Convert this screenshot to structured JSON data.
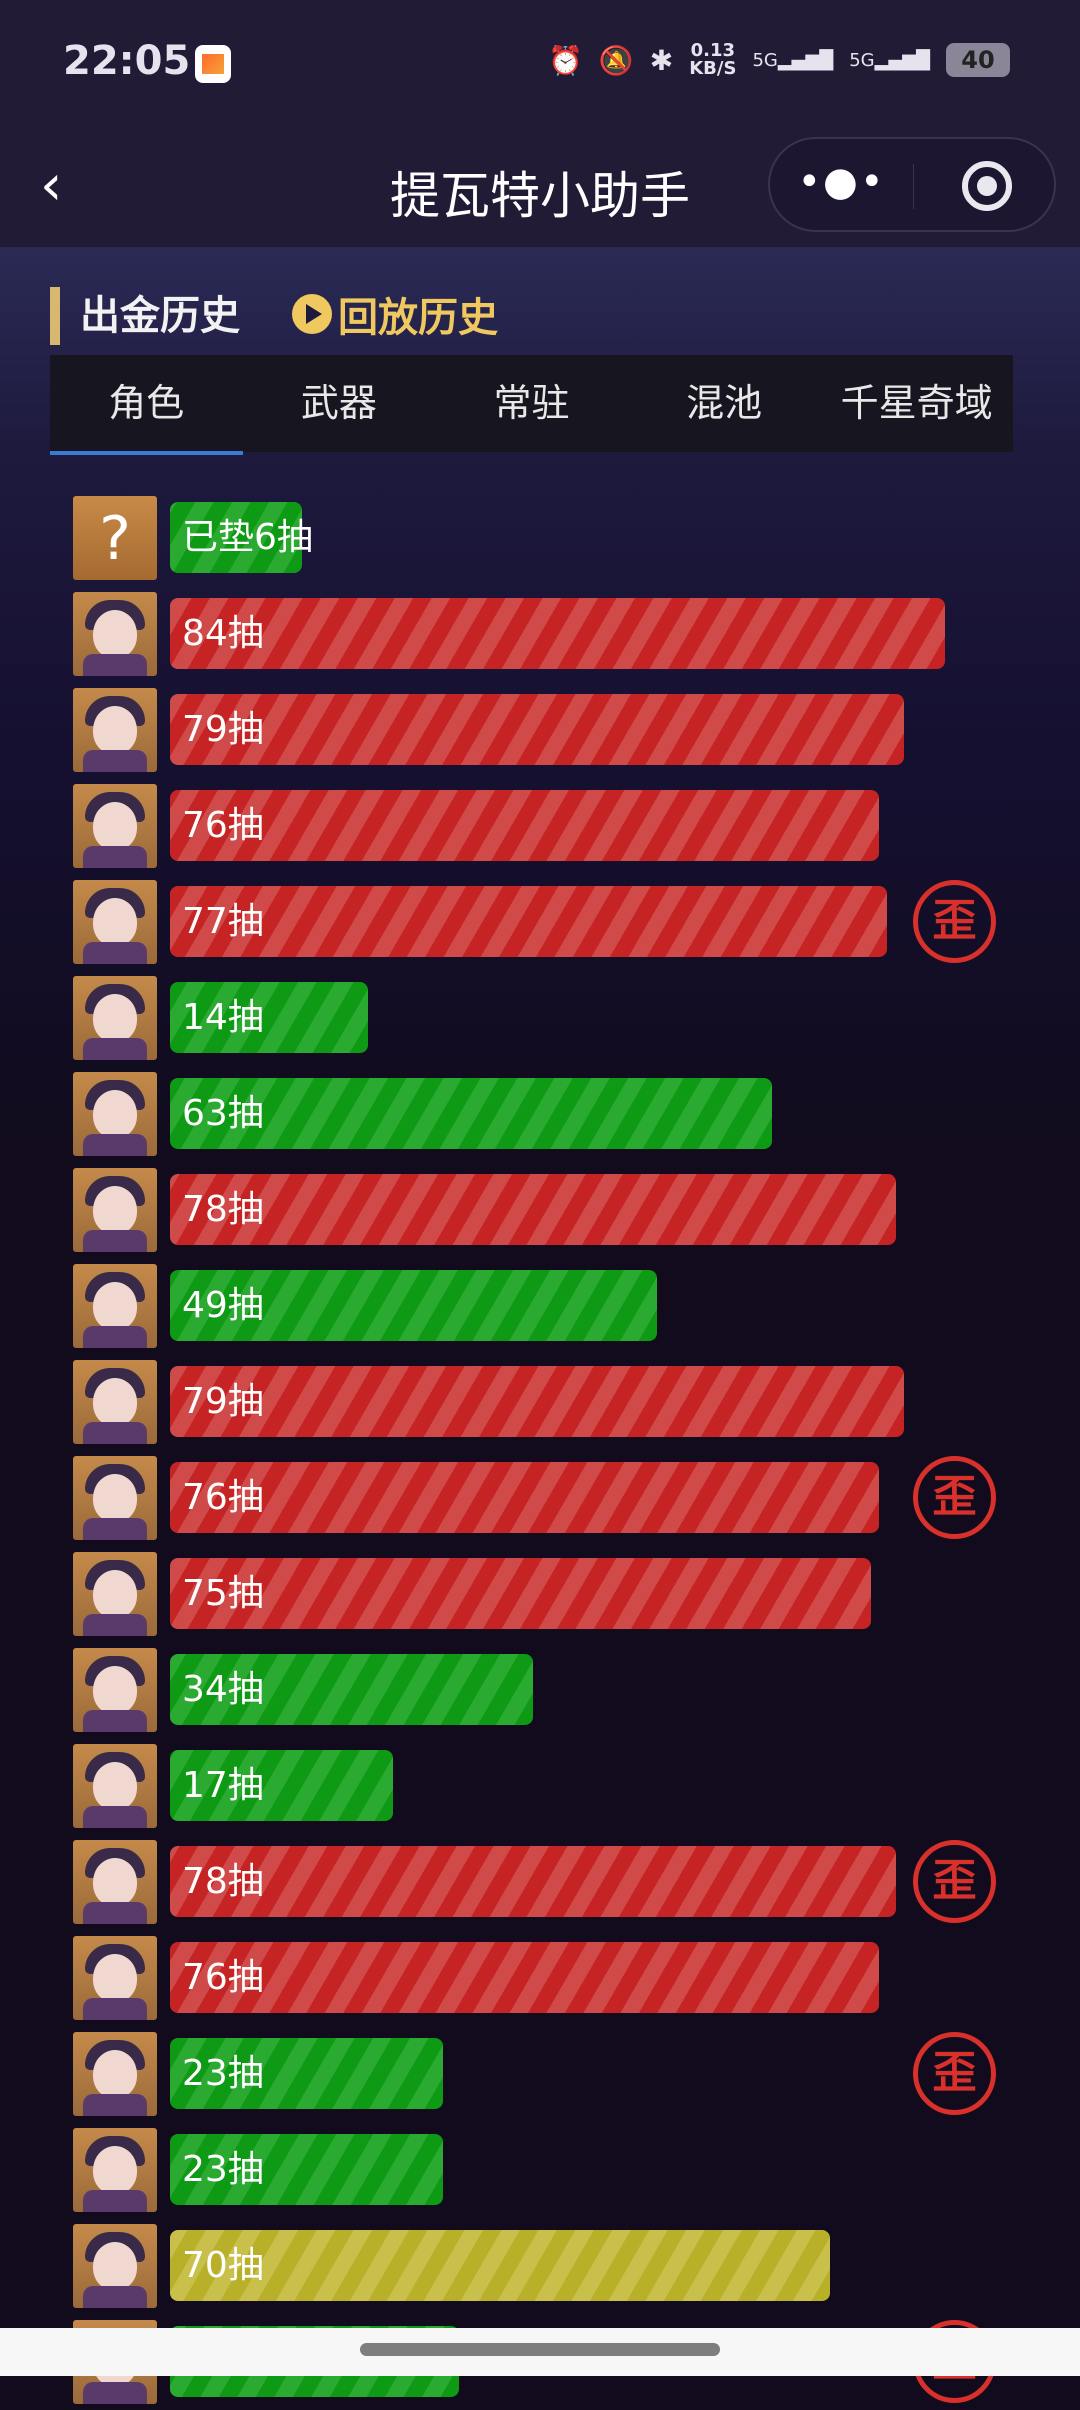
{
  "status_bar": {
    "time": "22:05",
    "net_speed": "0.13",
    "net_unit": "KB/S",
    "sim1": "5G",
    "sim2": "5G",
    "battery": "40"
  },
  "nav": {
    "title": "提瓦特小助手",
    "more_label": "•●•"
  },
  "section": {
    "title": "出金历史",
    "replay_label": "回放历史"
  },
  "tabs": [
    {
      "label": "角色",
      "active": true
    },
    {
      "label": "武器"
    },
    {
      "label": "常驻"
    },
    {
      "label": "混池"
    },
    {
      "label": "千星奇域"
    }
  ],
  "badge_text": "歪",
  "colors": {
    "red": "#c62424",
    "green": "#0e9a14",
    "yellow": "#b9b02a",
    "badge": "#d8302a",
    "tab_underline": "#3a7bd5"
  },
  "records": [
    {
      "label": "已垫6抽",
      "pulls": 6,
      "color": "green",
      "avatar": "question-mark",
      "lost": false
    },
    {
      "label": "84抽",
      "pulls": 84,
      "color": "red",
      "lost": false
    },
    {
      "label": "79抽",
      "pulls": 79,
      "color": "red",
      "lost": false
    },
    {
      "label": "76抽",
      "pulls": 76,
      "color": "red",
      "lost": false
    },
    {
      "label": "77抽",
      "pulls": 77,
      "color": "red",
      "lost": true
    },
    {
      "label": "14抽",
      "pulls": 14,
      "color": "green",
      "lost": false
    },
    {
      "label": "63抽",
      "pulls": 63,
      "color": "green",
      "lost": false
    },
    {
      "label": "78抽",
      "pulls": 78,
      "color": "red",
      "lost": false
    },
    {
      "label": "49抽",
      "pulls": 49,
      "color": "green",
      "lost": false
    },
    {
      "label": "79抽",
      "pulls": 79,
      "color": "red",
      "lost": false
    },
    {
      "label": "76抽",
      "pulls": 76,
      "color": "red",
      "lost": true
    },
    {
      "label": "75抽",
      "pulls": 75,
      "color": "red",
      "lost": false
    },
    {
      "label": "34抽",
      "pulls": 34,
      "color": "green",
      "lost": false
    },
    {
      "label": "17抽",
      "pulls": 17,
      "color": "green",
      "lost": false
    },
    {
      "label": "78抽",
      "pulls": 78,
      "color": "red",
      "lost": true
    },
    {
      "label": "76抽",
      "pulls": 76,
      "color": "red",
      "lost": false
    },
    {
      "label": "23抽",
      "pulls": 23,
      "color": "green",
      "lost": true
    },
    {
      "label": "23抽",
      "pulls": 23,
      "color": "green",
      "lost": false
    },
    {
      "label": "70抽",
      "pulls": 70,
      "color": "yellow",
      "lost": false
    },
    {
      "label": "",
      "pulls": 25,
      "color": "green",
      "lost": true
    }
  ]
}
